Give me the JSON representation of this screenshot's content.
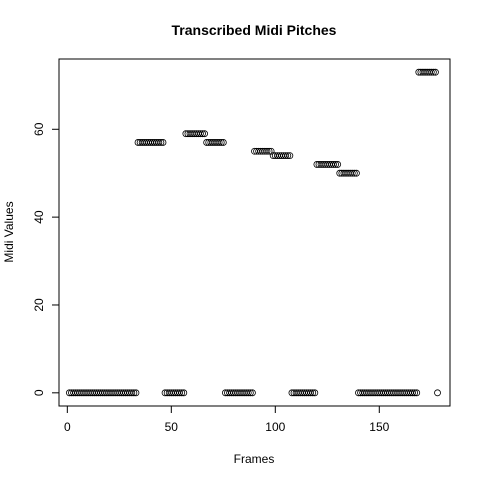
{
  "chart_data": {
    "type": "scatter",
    "title": "Transcribed Midi Pitches",
    "xlabel": "Frames",
    "ylabel": "Midi Values",
    "xlim": [
      -4,
      184
    ],
    "ylim": [
      -3,
      76
    ],
    "xticks": [
      0,
      50,
      100,
      150
    ],
    "yticks": [
      0,
      20,
      40,
      60
    ],
    "grid": false,
    "marker": "open-circle",
    "segments": [
      {
        "x_start": 1,
        "x_end": 33,
        "y": 0
      },
      {
        "x_start": 34,
        "x_end": 46,
        "y": 57
      },
      {
        "x_start": 47,
        "x_end": 56,
        "y": 0
      },
      {
        "x_start": 57,
        "x_end": 66,
        "y": 59
      },
      {
        "x_start": 67,
        "x_end": 75,
        "y": 57
      },
      {
        "x_start": 76,
        "x_end": 89,
        "y": 0
      },
      {
        "x_start": 90,
        "x_end": 98,
        "y": 55
      },
      {
        "x_start": 99,
        "x_end": 107,
        "y": 54
      },
      {
        "x_start": 108,
        "x_end": 119,
        "y": 0
      },
      {
        "x_start": 120,
        "x_end": 130,
        "y": 52
      },
      {
        "x_start": 131,
        "x_end": 139,
        "y": 50
      },
      {
        "x_start": 140,
        "x_end": 168,
        "y": 0
      },
      {
        "x_start": 169,
        "x_end": 177,
        "y": 73
      },
      {
        "x_start": 178,
        "x_end": 178,
        "y": 0
      }
    ]
  }
}
